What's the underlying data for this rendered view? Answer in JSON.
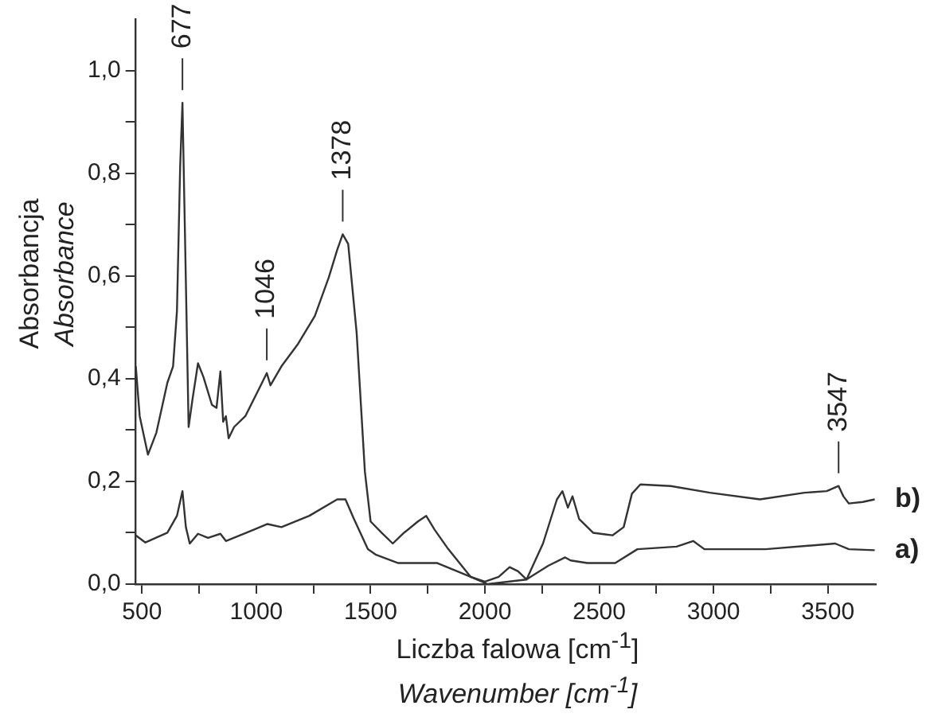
{
  "chart_data": {
    "type": "line",
    "xlabel": "Liczba falowa [cm$^{-1}$]\nWavenumber [cm$^{-1}$]",
    "ylabel": "Absorbancja\nAbsorbance",
    "xlim": [
      470,
      3710
    ],
    "ylim": [
      0,
      1.1
    ],
    "xticks": [
      500,
      {
        "value": 750,
        "label": null
      },
      1000,
      {
        "value": 1250,
        "label": null
      },
      1500,
      {
        "value": 1750,
        "label": null
      },
      2000,
      {
        "value": 2250,
        "label": null
      },
      2500,
      {
        "value": 2750,
        "label": null
      },
      3000,
      {
        "value": 3250,
        "label": null
      },
      3500
    ],
    "yticks": [
      {
        "value": 0,
        "label": "0,0"
      },
      {
        "value": 0.1,
        "label": null
      },
      {
        "value": 0.2,
        "label": "0,2"
      },
      {
        "value": 0.3,
        "label": null
      },
      {
        "value": 0.4,
        "label": "0,4"
      },
      {
        "value": 0.5,
        "label": null
      },
      {
        "value": 0.6,
        "label": "0,6"
      },
      {
        "value": 0.7,
        "label": null
      },
      {
        "value": 0.8,
        "label": "0,8"
      },
      {
        "value": 0.9,
        "label": null
      },
      {
        "value": 1.0,
        "label": "1,0"
      }
    ],
    "grid": false,
    "legend": false,
    "marker": "none",
    "line_style": "solid",
    "annotations": [
      {
        "text": "677",
        "x": 677,
        "y": 0.937
      },
      {
        "text": "1046",
        "x": 1046,
        "y": 0.411
      },
      {
        "text": "1378",
        "x": 1378,
        "y": 0.681
      },
      {
        "text": "3547",
        "x": 3547,
        "y": 0.191
      }
    ],
    "series": [
      {
        "name": "a)",
        "color": "#333333",
        "x": [
          473,
          515,
          611,
          653,
          677,
          692,
          709,
          745,
          789,
          843,
          867,
          989,
          1049,
          1110,
          1232,
          1354,
          1390,
          1427,
          1488,
          1524,
          1621,
          1792,
          1938,
          2012,
          2181,
          2278,
          2351,
          2375,
          2448,
          2570,
          2667,
          2838,
          2911,
          2960,
          3227,
          3532,
          3592,
          3705
        ],
        "values": [
          0.095,
          0.081,
          0.1,
          0.133,
          0.181,
          0.111,
          0.079,
          0.098,
          0.09,
          0.098,
          0.084,
          0.106,
          0.117,
          0.111,
          0.133,
          0.165,
          0.165,
          0.127,
          0.068,
          0.057,
          0.041,
          0.041,
          0.014,
          0.0,
          0.009,
          0.036,
          0.052,
          0.046,
          0.041,
          0.041,
          0.068,
          0.073,
          0.084,
          0.068,
          0.068,
          0.079,
          0.068,
          0.066
        ]
      },
      {
        "name": "b)",
        "color": "#333333",
        "x": [
          473,
          490,
          526,
          563,
          611,
          636,
          653,
          667,
          677,
          687,
          704,
          721,
          745,
          769,
          806,
          826,
          843,
          855,
          867,
          879,
          903,
          952,
          1013,
          1046,
          1062,
          1110,
          1183,
          1256,
          1317,
          1354,
          1378,
          1402,
          1439,
          1475,
          1500,
          1548,
          1597,
          1646,
          1707,
          1743,
          1780,
          1840,
          1938,
          2000,
          2060,
          2108,
          2145,
          2182,
          2254,
          2315,
          2339,
          2363,
          2383,
          2412,
          2473,
          2558,
          2607,
          2643,
          2680,
          2813,
          2984,
          3203,
          3398,
          3495,
          3547,
          3568,
          3592,
          3653,
          3705
        ],
        "values": [
          0.424,
          0.327,
          0.252,
          0.295,
          0.392,
          0.424,
          0.532,
          0.813,
          0.937,
          0.705,
          0.306,
          0.36,
          0.43,
          0.403,
          0.349,
          0.343,
          0.414,
          0.316,
          0.327,
          0.284,
          0.306,
          0.327,
          0.381,
          0.411,
          0.387,
          0.424,
          0.468,
          0.522,
          0.597,
          0.651,
          0.681,
          0.662,
          0.489,
          0.219,
          0.122,
          0.1,
          0.079,
          0.1,
          0.122,
          0.133,
          0.106,
          0.068,
          0.014,
          0.005,
          0.014,
          0.033,
          0.025,
          0.009,
          0.079,
          0.165,
          0.181,
          0.149,
          0.171,
          0.127,
          0.1,
          0.095,
          0.111,
          0.176,
          0.194,
          0.191,
          0.178,
          0.165,
          0.178,
          0.181,
          0.191,
          0.171,
          0.157,
          0.16,
          0.165
        ]
      }
    ]
  }
}
